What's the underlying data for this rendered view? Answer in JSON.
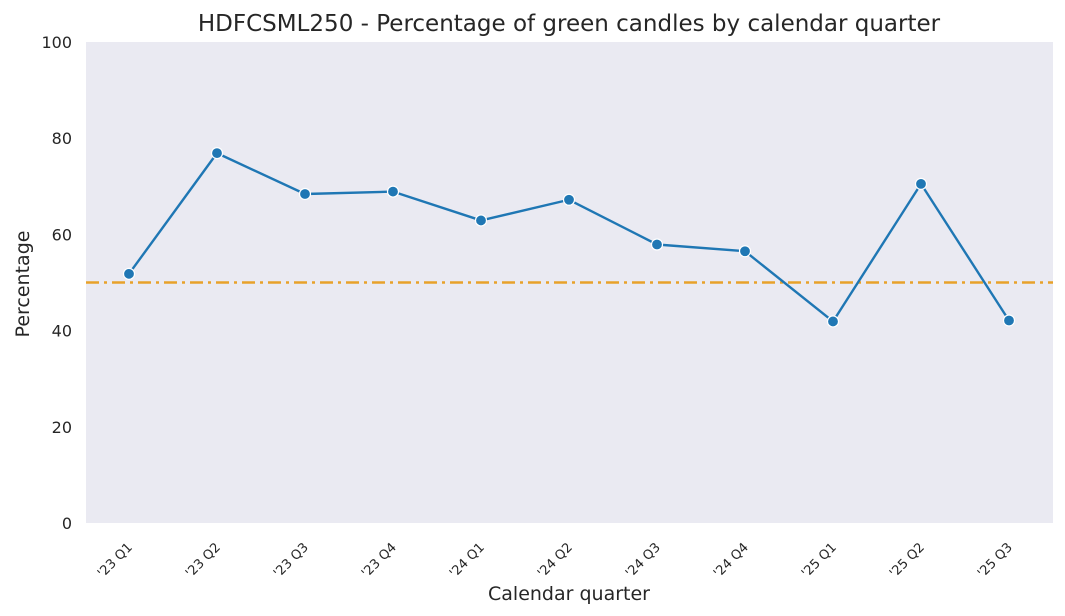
{
  "chart_data": {
    "type": "line",
    "title": "HDFCSML250 - Percentage of green candles by calendar quarter",
    "xlabel": "Calendar quarter",
    "ylabel": "Percentage",
    "categories": [
      "'23 Q1",
      "'23 Q2",
      "'23 Q3",
      "'23 Q4",
      "'24 Q1",
      "'24 Q2",
      "'24 Q3",
      "'24 Q4",
      "'25 Q1",
      "'25 Q2",
      "'25 Q3"
    ],
    "series": [
      {
        "values": [
          51.8,
          76.9,
          68.4,
          68.9,
          62.9,
          67.2,
          57.9,
          56.5,
          41.9,
          70.5,
          42.1
        ]
      }
    ],
    "reference_line": {
      "y": 50,
      "style": "dash-dot",
      "color": "#e8a12a"
    },
    "ylim": [
      0,
      100
    ],
    "yticks": [
      0,
      20,
      40,
      60,
      80,
      100
    ],
    "grid": false,
    "colors": {
      "line": "#1f77b4",
      "plot_background": "#eaeaf2"
    }
  }
}
